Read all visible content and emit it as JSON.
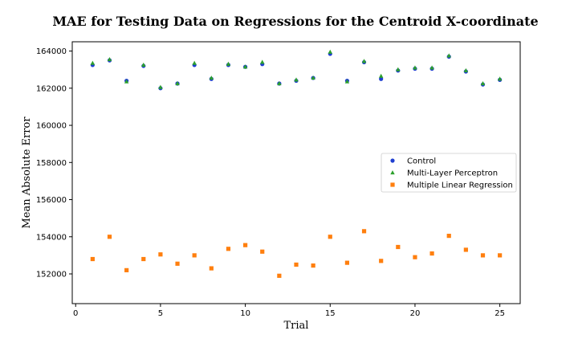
{
  "chart_data": {
    "type": "scatter",
    "title": "MAE for Testing Data on Regressions for the Centroid X-coordinate",
    "xlabel": "Trial",
    "ylabel": "Mean Absolute Error",
    "xlim": [
      -0.2,
      26.2
    ],
    "ylim": [
      150400,
      164500
    ],
    "xticks": [
      0,
      5,
      10,
      15,
      20,
      25
    ],
    "yticks": [
      152000,
      154000,
      156000,
      158000,
      160000,
      162000,
      164000
    ],
    "grid": false,
    "legend_position": "center-right",
    "x": [
      1,
      2,
      3,
      4,
      5,
      6,
      7,
      8,
      9,
      10,
      11,
      12,
      13,
      14,
      15,
      16,
      17,
      18,
      19,
      20,
      21,
      22,
      23,
      24,
      25
    ],
    "series": [
      {
        "name": "Control",
        "marker": "circle",
        "color": "#1f3fd0",
        "values": [
          163250,
          163500,
          162400,
          163200,
          162000,
          162250,
          163250,
          162500,
          163250,
          163150,
          163300,
          162250,
          162400,
          162550,
          163850,
          162400,
          163400,
          162500,
          162950,
          163050,
          163050,
          163700,
          162900,
          162200,
          162450
        ]
      },
      {
        "name": "Multi-Layer Perceptron",
        "marker": "triangle",
        "color": "#2ca02c",
        "values": [
          163350,
          163550,
          162350,
          163250,
          162050,
          162250,
          163350,
          162550,
          163300,
          163150,
          163400,
          162250,
          162450,
          162550,
          163950,
          162350,
          163450,
          162650,
          163000,
          163100,
          163100,
          163750,
          162950,
          162250,
          162500
        ]
      },
      {
        "name": "Multiple Linear Regression",
        "marker": "square",
        "color": "#ff7f0e",
        "values": [
          152800,
          154000,
          152200,
          152800,
          153050,
          152550,
          153000,
          152300,
          153350,
          153550,
          153200,
          151900,
          152500,
          152450,
          154000,
          152600,
          154300,
          152700,
          153450,
          152900,
          153100,
          154050,
          153300,
          153000,
          153000
        ]
      }
    ]
  }
}
